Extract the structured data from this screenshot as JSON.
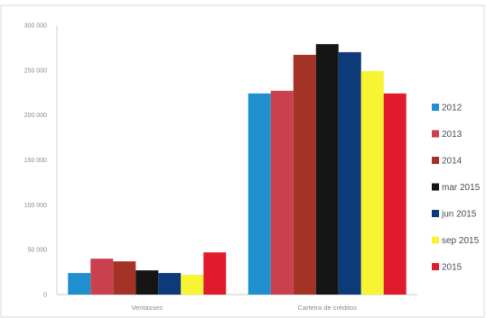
{
  "chart_data": {
    "type": "bar",
    "title": "",
    "xlabel": "",
    "ylabel": "",
    "categories": [
      "Ventasses",
      "Carteira de créditos"
    ],
    "ylim": [
      0,
      300000
    ],
    "yticks": [
      0,
      50000,
      100000,
      150000,
      200000,
      250000,
      300000
    ],
    "ytick_labels": [
      "0",
      "50 000",
      "100 000",
      "150 000",
      "200 000",
      "250 000",
      "300 000"
    ],
    "grid": false,
    "legend_position": "right",
    "series": [
      {
        "name": "2012",
        "color": "#1f8fd0",
        "values": [
          24000,
          224000
        ]
      },
      {
        "name": "2013",
        "color": "#c9404f",
        "values": [
          40000,
          227000
        ]
      },
      {
        "name": "2014",
        "color": "#a43226",
        "values": [
          37000,
          267000
        ]
      },
      {
        "name": "mar 2015",
        "color": "#151515",
        "values": [
          27000,
          279000
        ]
      },
      {
        "name": "jun 2015",
        "color": "#0d3a78",
        "values": [
          24000,
          270000
        ]
      },
      {
        "name": "sep 2015",
        "color": "#f7f433",
        "values": [
          22000,
          249000
        ]
      },
      {
        "name": "2015",
        "color": "#e01b2b",
        "values": [
          47000,
          224000
        ]
      }
    ]
  }
}
